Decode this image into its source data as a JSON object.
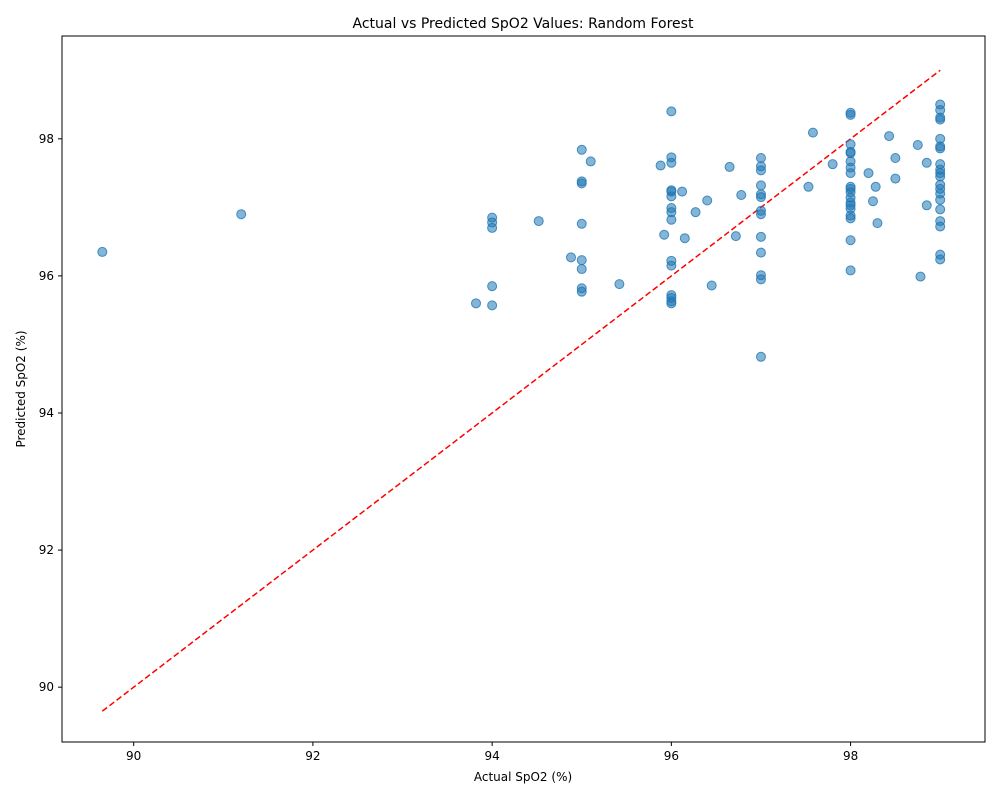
{
  "chart_data": {
    "type": "scatter",
    "title": "Actual vs Predicted SpO2 Values: Random Forest",
    "xlabel": "Actual SpO2 (%)",
    "ylabel": "Predicted SpO2 (%)",
    "xlim": [
      89.2,
      99.5
    ],
    "ylim": [
      89.2,
      99.5
    ],
    "xticks": [
      90,
      92,
      94,
      96,
      98
    ],
    "yticks": [
      90,
      92,
      94,
      96,
      98
    ],
    "grid": false,
    "legend": "none",
    "point_color": "#1f77b4",
    "reference_line": {
      "from": [
        89.65,
        89.65
      ],
      "to": [
        99.0,
        99.0
      ],
      "color": "#ff0000",
      "style": "dashed"
    },
    "points": [
      {
        "x": 89.65,
        "y": 96.35
      },
      {
        "x": 91.2,
        "y": 96.9
      },
      {
        "x": 93.82,
        "y": 95.6
      },
      {
        "x": 94.0,
        "y": 95.57
      },
      {
        "x": 94.0,
        "y": 95.85
      },
      {
        "x": 94.0,
        "y": 96.7
      },
      {
        "x": 94.0,
        "y": 96.78
      },
      {
        "x": 94.0,
        "y": 96.85
      },
      {
        "x": 94.52,
        "y": 96.8
      },
      {
        "x": 94.88,
        "y": 96.27
      },
      {
        "x": 95.0,
        "y": 95.77
      },
      {
        "x": 95.0,
        "y": 95.82
      },
      {
        "x": 95.0,
        "y": 96.1
      },
      {
        "x": 95.0,
        "y": 96.23
      },
      {
        "x": 95.0,
        "y": 96.76
      },
      {
        "x": 95.0,
        "y": 97.35
      },
      {
        "x": 95.0,
        "y": 97.38
      },
      {
        "x": 95.0,
        "y": 97.84
      },
      {
        "x": 95.1,
        "y": 97.67
      },
      {
        "x": 95.42,
        "y": 95.88
      },
      {
        "x": 95.88,
        "y": 97.61
      },
      {
        "x": 95.92,
        "y": 96.6
      },
      {
        "x": 96.0,
        "y": 95.6
      },
      {
        "x": 96.0,
        "y": 95.63
      },
      {
        "x": 96.0,
        "y": 95.68
      },
      {
        "x": 96.0,
        "y": 95.72
      },
      {
        "x": 96.0,
        "y": 96.15
      },
      {
        "x": 96.0,
        "y": 96.22
      },
      {
        "x": 96.0,
        "y": 96.82
      },
      {
        "x": 96.0,
        "y": 96.93
      },
      {
        "x": 96.0,
        "y": 96.99
      },
      {
        "x": 96.0,
        "y": 97.16
      },
      {
        "x": 96.0,
        "y": 97.23
      },
      {
        "x": 96.0,
        "y": 97.25
      },
      {
        "x": 96.0,
        "y": 97.65
      },
      {
        "x": 96.0,
        "y": 97.73
      },
      {
        "x": 96.0,
        "y": 98.4
      },
      {
        "x": 96.12,
        "y": 97.23
      },
      {
        "x": 96.15,
        "y": 96.55
      },
      {
        "x": 96.27,
        "y": 96.93
      },
      {
        "x": 96.4,
        "y": 97.1
      },
      {
        "x": 96.45,
        "y": 95.86
      },
      {
        "x": 96.65,
        "y": 97.59
      },
      {
        "x": 96.72,
        "y": 96.58
      },
      {
        "x": 96.78,
        "y": 97.18
      },
      {
        "x": 97.0,
        "y": 94.82
      },
      {
        "x": 97.0,
        "y": 95.95
      },
      {
        "x": 97.0,
        "y": 96.01
      },
      {
        "x": 97.0,
        "y": 96.34
      },
      {
        "x": 97.0,
        "y": 96.57
      },
      {
        "x": 97.0,
        "y": 96.9
      },
      {
        "x": 97.0,
        "y": 96.95
      },
      {
        "x": 97.0,
        "y": 97.15
      },
      {
        "x": 97.0,
        "y": 97.19
      },
      {
        "x": 97.0,
        "y": 97.32
      },
      {
        "x": 97.0,
        "y": 97.54
      },
      {
        "x": 97.0,
        "y": 97.6
      },
      {
        "x": 97.0,
        "y": 97.72
      },
      {
        "x": 97.53,
        "y": 97.3
      },
      {
        "x": 97.58,
        "y": 98.09
      },
      {
        "x": 97.8,
        "y": 97.63
      },
      {
        "x": 98.0,
        "y": 96.08
      },
      {
        "x": 98.0,
        "y": 96.52
      },
      {
        "x": 98.0,
        "y": 96.84
      },
      {
        "x": 98.0,
        "y": 96.88
      },
      {
        "x": 98.0,
        "y": 96.98
      },
      {
        "x": 98.0,
        "y": 97.03
      },
      {
        "x": 98.0,
        "y": 97.07
      },
      {
        "x": 98.0,
        "y": 97.14
      },
      {
        "x": 98.0,
        "y": 97.22
      },
      {
        "x": 98.0,
        "y": 97.27
      },
      {
        "x": 98.0,
        "y": 97.3
      },
      {
        "x": 98.0,
        "y": 97.5
      },
      {
        "x": 98.0,
        "y": 97.58
      },
      {
        "x": 98.0,
        "y": 97.67
      },
      {
        "x": 98.0,
        "y": 97.79
      },
      {
        "x": 98.0,
        "y": 97.81
      },
      {
        "x": 98.0,
        "y": 97.92
      },
      {
        "x": 98.0,
        "y": 98.35
      },
      {
        "x": 98.0,
        "y": 98.38
      },
      {
        "x": 98.2,
        "y": 97.5
      },
      {
        "x": 98.25,
        "y": 97.09
      },
      {
        "x": 98.28,
        "y": 97.3
      },
      {
        "x": 98.3,
        "y": 96.77
      },
      {
        "x": 98.43,
        "y": 98.04
      },
      {
        "x": 98.5,
        "y": 97.42
      },
      {
        "x": 98.5,
        "y": 97.72
      },
      {
        "x": 98.75,
        "y": 97.91
      },
      {
        "x": 98.78,
        "y": 95.99
      },
      {
        "x": 98.85,
        "y": 97.03
      },
      {
        "x": 98.85,
        "y": 97.65
      },
      {
        "x": 99.0,
        "y": 96.24
      },
      {
        "x": 99.0,
        "y": 96.31
      },
      {
        "x": 99.0,
        "y": 96.72
      },
      {
        "x": 99.0,
        "y": 96.8
      },
      {
        "x": 99.0,
        "y": 96.97
      },
      {
        "x": 99.0,
        "y": 97.11
      },
      {
        "x": 99.0,
        "y": 97.2
      },
      {
        "x": 99.0,
        "y": 97.27
      },
      {
        "x": 99.0,
        "y": 97.33
      },
      {
        "x": 99.0,
        "y": 97.45
      },
      {
        "x": 99.0,
        "y": 97.5
      },
      {
        "x": 99.0,
        "y": 97.55
      },
      {
        "x": 99.0,
        "y": 97.63
      },
      {
        "x": 99.0,
        "y": 97.86
      },
      {
        "x": 99.0,
        "y": 97.89
      },
      {
        "x": 99.0,
        "y": 98.0
      },
      {
        "x": 99.0,
        "y": 98.28
      },
      {
        "x": 99.0,
        "y": 98.31
      },
      {
        "x": 99.0,
        "y": 98.42
      },
      {
        "x": 99.0,
        "y": 98.5
      }
    ]
  }
}
